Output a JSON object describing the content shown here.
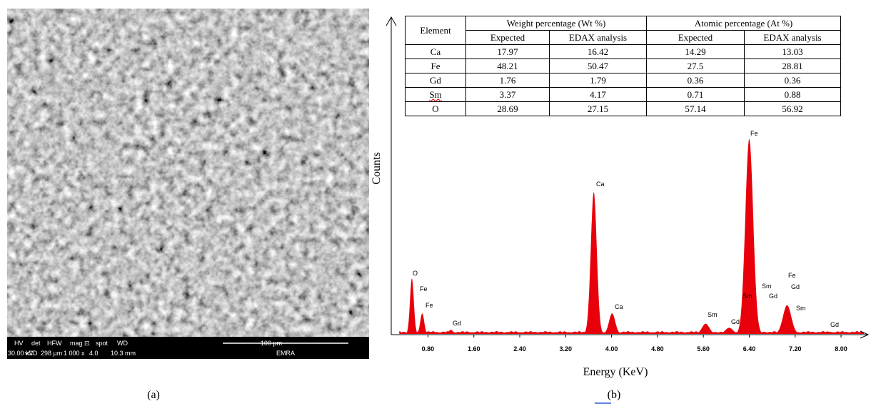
{
  "panel_a": {
    "info_bar": {
      "headers": [
        "HV",
        "det",
        "HFW",
        "mag ⊡",
        "spot",
        "WD"
      ],
      "values": [
        "30.00 kV",
        "vCD",
        "298 µm",
        "1 000 x",
        "4.0",
        "10.3 mm"
      ],
      "scale_bar": "100 µm",
      "lab": "EMRA"
    },
    "caption": "(a)"
  },
  "panel_b": {
    "table": {
      "header": [
        "Element",
        "Weight percentage (Wt %)",
        "Atomic percentage (At %)"
      ],
      "subheader": [
        "Expected",
        "EDAX analysis",
        "Expected",
        "EDAX analysis"
      ],
      "rows": [
        [
          "Ca",
          17.97,
          16.42,
          14.29,
          13.03
        ],
        [
          "Fe",
          48.21,
          50.47,
          27.5,
          28.81
        ],
        [
          "Gd",
          1.76,
          1.79,
          0.36,
          0.36
        ],
        [
          "Sm",
          3.37,
          4.17,
          0.71,
          0.88
        ],
        [
          "O",
          28.69,
          27.15,
          57.14,
          56.92
        ]
      ]
    },
    "spectrum": {
      "y_label": "Counts",
      "x_label": "Energy (KeV)",
      "xlim": [
        0.16,
        8.46
      ],
      "xticks": [
        {
          "value": 0.8,
          "label": "0.80"
        },
        {
          "value": 1.6,
          "label": "1.60"
        },
        {
          "value": 2.4,
          "label": "2.40"
        },
        {
          "value": 3.2,
          "label": "3.20"
        },
        {
          "value": 4,
          "label": "4.00"
        },
        {
          "value": 4.8,
          "label": "4.80"
        },
        {
          "value": 5.6,
          "label": "5.60"
        },
        {
          "value": 6.4,
          "label": "6.40"
        },
        {
          "value": 7.2,
          "label": "7.20"
        },
        {
          "value": 8,
          "label": "8.00"
        }
      ],
      "ylim": [
        0,
        100
      ],
      "color": "#e8000b",
      "peaks": [
        {
          "energy": 0.52,
          "height": 27
        },
        {
          "energy": 0.7,
          "height": 10
        },
        {
          "energy": 1.2,
          "height": 2
        },
        {
          "energy": 3.69,
          "height": 69
        },
        {
          "energy": 4.01,
          "height": 10
        },
        {
          "energy": 5.64,
          "height": 5
        },
        {
          "energy": 6.05,
          "height": 3
        },
        {
          "energy": 6.4,
          "height": 95
        },
        {
          "energy": 7.06,
          "height": 14
        },
        {
          "energy": 7.8,
          "height": 1
        }
      ],
      "peak_labels": [
        "O",
        "Fe",
        "Fe",
        "Gd",
        "Ca",
        "Ca",
        "Sm",
        "Gd",
        "Fe",
        "Sm",
        "Sm",
        "Gd",
        "Fe",
        "Gd",
        "Sm",
        "Gd"
      ]
    },
    "caption": "(b)"
  }
}
